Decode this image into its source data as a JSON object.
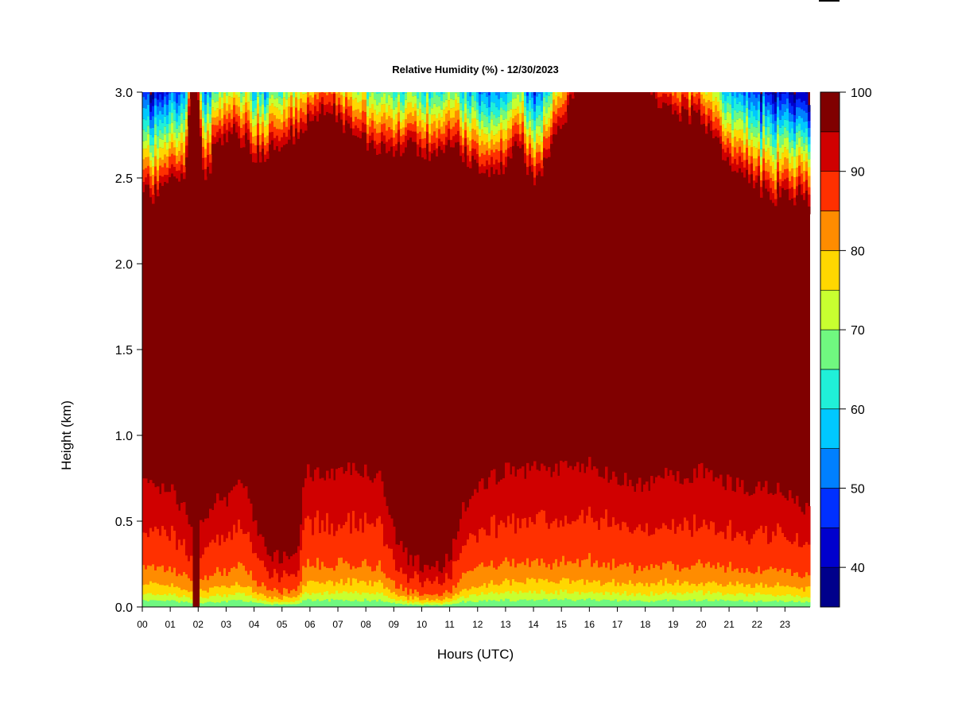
{
  "chart_data": {
    "type": "heatmap",
    "title": "Relative Humidity (%) - 12/30/2023",
    "xlabel": "Hours (UTC)",
    "ylabel": "Height (km)",
    "x_ticks": [
      "00",
      "01",
      "02",
      "03",
      "04",
      "05",
      "06",
      "07",
      "08",
      "09",
      "10",
      "11",
      "12",
      "13",
      "14",
      "15",
      "16",
      "17",
      "18",
      "19",
      "20",
      "21",
      "22",
      "23"
    ],
    "xlim": [
      0,
      23.9
    ],
    "y_ticks": [
      "0.0",
      "0.5",
      "1.0",
      "1.5",
      "2.0",
      "2.5",
      "3.0"
    ],
    "ylim": [
      0,
      3.0
    ],
    "colorbar": {
      "levels": [
        35,
        40,
        45,
        50,
        55,
        60,
        65,
        70,
        75,
        80,
        85,
        90,
        95,
        100
      ],
      "tick_labels": [
        "40",
        "50",
        "60",
        "70",
        "80",
        "90",
        "100"
      ],
      "colors": [
        "#00008b",
        "#0000cd",
        "#0030ff",
        "#0080ff",
        "#00c8ff",
        "#20f0d8",
        "#70f880",
        "#c8ff30",
        "#ffd700",
        "#ff8c00",
        "#ff3000",
        "#d00000",
        "#800000"
      ]
    },
    "upper_dry_boundary_km": {
      "hours": [
        0,
        0.5,
        1.0,
        1.5,
        1.75,
        1.9,
        2.2,
        2.5,
        3,
        3.5,
        4,
        4.5,
        5,
        5.5,
        6,
        6.5,
        7,
        7.5,
        8,
        8.5,
        9,
        9.5,
        10,
        10.5,
        11,
        11.5,
        12,
        12.5,
        13,
        13.5,
        14,
        14.5,
        15,
        15.4,
        15.7,
        16,
        16.5,
        17,
        17.5,
        18,
        18.5,
        19,
        19.5,
        20,
        20.5,
        21,
        21.5,
        22,
        22.5,
        23,
        23.9
      ],
      "height": [
        2.35,
        2.35,
        2.4,
        2.45,
        3.1,
        3.1,
        2.4,
        2.6,
        2.7,
        2.68,
        2.6,
        2.6,
        2.65,
        2.72,
        2.78,
        2.85,
        2.8,
        2.7,
        2.65,
        2.62,
        2.6,
        2.62,
        2.6,
        2.6,
        2.6,
        2.58,
        2.5,
        2.45,
        2.55,
        2.65,
        2.4,
        2.6,
        2.78,
        2.9,
        3.1,
        3.1,
        3.1,
        3.1,
        3.1,
        3.0,
        2.85,
        2.8,
        2.82,
        2.8,
        2.65,
        2.5,
        2.45,
        2.4,
        2.35,
        2.35,
        2.32
      ]
    },
    "lower_moist_boundary_km": {
      "hours": [
        0,
        0.5,
        1.0,
        1.5,
        2.0,
        2.5,
        3,
        3.5,
        4,
        4.5,
        5,
        5.5,
        5.8,
        6,
        6.5,
        7,
        7.5,
        8,
        8.5,
        9,
        9.5,
        10,
        10.5,
        11,
        11.5,
        12,
        12.5,
        13,
        13.5,
        14,
        14.5,
        15,
        15.5,
        16,
        16.5,
        17,
        17.5,
        18,
        18.5,
        19,
        19.5,
        20,
        20.5,
        21,
        21.5,
        22,
        22.5,
        23,
        23.9
      ],
      "height": [
        0.72,
        0.7,
        0.68,
        0.55,
        0.45,
        0.62,
        0.6,
        0.75,
        0.5,
        0.3,
        0.28,
        0.3,
        0.8,
        0.78,
        0.75,
        0.8,
        0.8,
        0.78,
        0.75,
        0.4,
        0.28,
        0.25,
        0.22,
        0.3,
        0.6,
        0.7,
        0.75,
        0.8,
        0.78,
        0.8,
        0.78,
        0.82,
        0.8,
        0.85,
        0.78,
        0.75,
        0.72,
        0.7,
        0.75,
        0.78,
        0.75,
        0.8,
        0.75,
        0.72,
        0.7,
        0.68,
        0.7,
        0.65,
        0.55
      ]
    }
  }
}
